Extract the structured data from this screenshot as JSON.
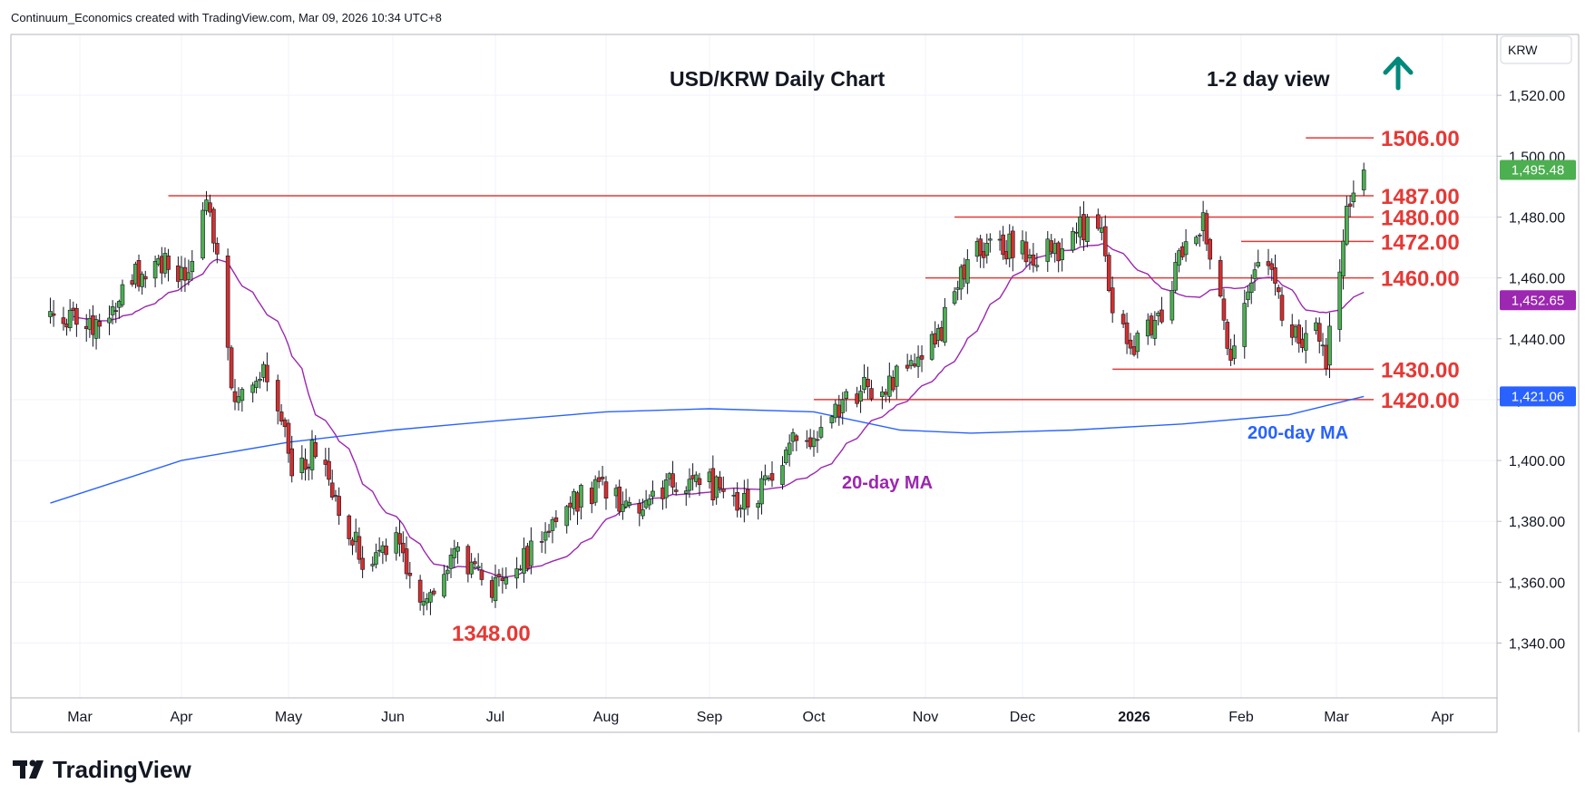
{
  "header": {
    "credit": "Continuum_Economics created with TradingView.com, Mar 09, 2026 10:34 UTC+8"
  },
  "chart_data": {
    "type": "candlestick",
    "title": "USD/KRW Daily Chart",
    "subtitle": "1-2 day view",
    "bias": "up",
    "currency_label": "KRW",
    "ylim": [
      1322,
      1540
    ],
    "y_ticks": [
      1340,
      1360,
      1380,
      1400,
      1420,
      1440,
      1460,
      1480,
      1500,
      1520
    ],
    "y_tick_labels": [
      "1,340.00",
      "1,360.00",
      "1,380.00",
      "1,400.00",
      "1,420.00",
      "1,440.00",
      "1,460.00",
      "1,480.00",
      "1,500.00",
      "1,520.00"
    ],
    "x_labels": [
      "Mar",
      "Apr",
      "May",
      "Jun",
      "Jul",
      "Aug",
      "Sep",
      "Oct",
      "Nov",
      "Dec",
      "2026",
      "Feb",
      "Mar",
      "Apr"
    ],
    "levels": [
      {
        "value": 1506,
        "label": "1506.00"
      },
      {
        "value": 1487,
        "label": "1487.00"
      },
      {
        "value": 1480,
        "label": "1480.00"
      },
      {
        "value": 1472,
        "label": "1472.00"
      },
      {
        "value": 1460,
        "label": "1460.00"
      },
      {
        "value": 1430,
        "label": "1430.00"
      },
      {
        "value": 1420,
        "label": "1420.00"
      }
    ],
    "low_annotation": {
      "value": 1348,
      "label": "1348.00"
    },
    "price_boxes": [
      {
        "value": 1495.48,
        "label": "1,495.48",
        "color": "#4caf50"
      },
      {
        "value": 1452.65,
        "label": "1,452.65",
        "color": "#9c27b0"
      },
      {
        "value": 1421.06,
        "label": "1,421.06",
        "color": "#2962ff"
      }
    ],
    "close_path": [
      [
        "2025-02-20",
        1447
      ],
      [
        "2025-03-05",
        1443
      ],
      [
        "2025-03-12",
        1452
      ],
      [
        "2025-03-20",
        1463
      ],
      [
        "2025-03-27",
        1466
      ],
      [
        "2025-04-02",
        1462
      ],
      [
        "2025-04-09",
        1485
      ],
      [
        "2025-04-16",
        1418
      ],
      [
        "2025-04-25",
        1430
      ],
      [
        "2025-05-02",
        1398
      ],
      [
        "2025-05-09",
        1403
      ],
      [
        "2025-05-16",
        1385
      ],
      [
        "2025-05-23",
        1368
      ],
      [
        "2025-06-02",
        1372
      ],
      [
        "2025-06-10",
        1355
      ],
      [
        "2025-06-20",
        1368
      ],
      [
        "2025-06-30",
        1356
      ],
      [
        "2025-07-10",
        1368
      ],
      [
        "2025-07-20",
        1385
      ],
      [
        "2025-07-30",
        1390
      ],
      [
        "2025-08-10",
        1385
      ],
      [
        "2025-08-20",
        1393
      ],
      [
        "2025-09-01",
        1392
      ],
      [
        "2025-09-10",
        1386
      ],
      [
        "2025-09-18",
        1393
      ],
      [
        "2025-09-25",
        1405
      ],
      [
        "2025-10-02",
        1408
      ],
      [
        "2025-10-10",
        1422
      ],
      [
        "2025-10-20",
        1425
      ],
      [
        "2025-10-28",
        1432
      ],
      [
        "2025-11-05",
        1440
      ],
      [
        "2025-11-12",
        1462
      ],
      [
        "2025-11-20",
        1472
      ],
      [
        "2025-11-28",
        1470
      ],
      [
        "2025-12-05",
        1468
      ],
      [
        "2025-12-12",
        1470
      ],
      [
        "2025-12-19",
        1478
      ],
      [
        "2025-12-23",
        1478
      ],
      [
        "2025-12-26",
        1445
      ],
      [
        "2026-01-02",
        1438
      ],
      [
        "2026-01-09",
        1448
      ],
      [
        "2026-01-16",
        1474
      ],
      [
        "2026-01-21",
        1478
      ],
      [
        "2026-01-25",
        1462
      ],
      [
        "2026-01-29",
        1430
      ],
      [
        "2026-02-03",
        1455
      ],
      [
        "2026-02-08",
        1470
      ],
      [
        "2026-02-12",
        1452
      ],
      [
        "2026-02-18",
        1440
      ],
      [
        "2026-02-23",
        1447
      ],
      [
        "2026-02-26",
        1432
      ],
      [
        "2026-03-03",
        1475
      ],
      [
        "2026-03-06",
        1490
      ],
      [
        "2026-03-09",
        1495.48
      ]
    ],
    "ma20_label": "20-day MA",
    "ma20_color": "#9c27b0",
    "ma200_label": "200-day MA",
    "ma200_color": "#2962ff",
    "ma200_path": [
      [
        "2025-02-20",
        1386
      ],
      [
        "2025-04-01",
        1400
      ],
      [
        "2025-05-01",
        1406
      ],
      [
        "2025-06-01",
        1410
      ],
      [
        "2025-07-01",
        1413
      ],
      [
        "2025-08-01",
        1416
      ],
      [
        "2025-09-01",
        1417
      ],
      [
        "2025-10-01",
        1416
      ],
      [
        "2025-10-25",
        1410
      ],
      [
        "2025-11-15",
        1409
      ],
      [
        "2025-12-15",
        1410
      ],
      [
        "2026-01-15",
        1412
      ],
      [
        "2026-02-15",
        1415
      ],
      [
        "2026-03-09",
        1421.06
      ]
    ],
    "up_color": "#4caf50",
    "down_color": "#d32f2f",
    "grid": true
  },
  "footer": {
    "brand": "TradingView"
  }
}
